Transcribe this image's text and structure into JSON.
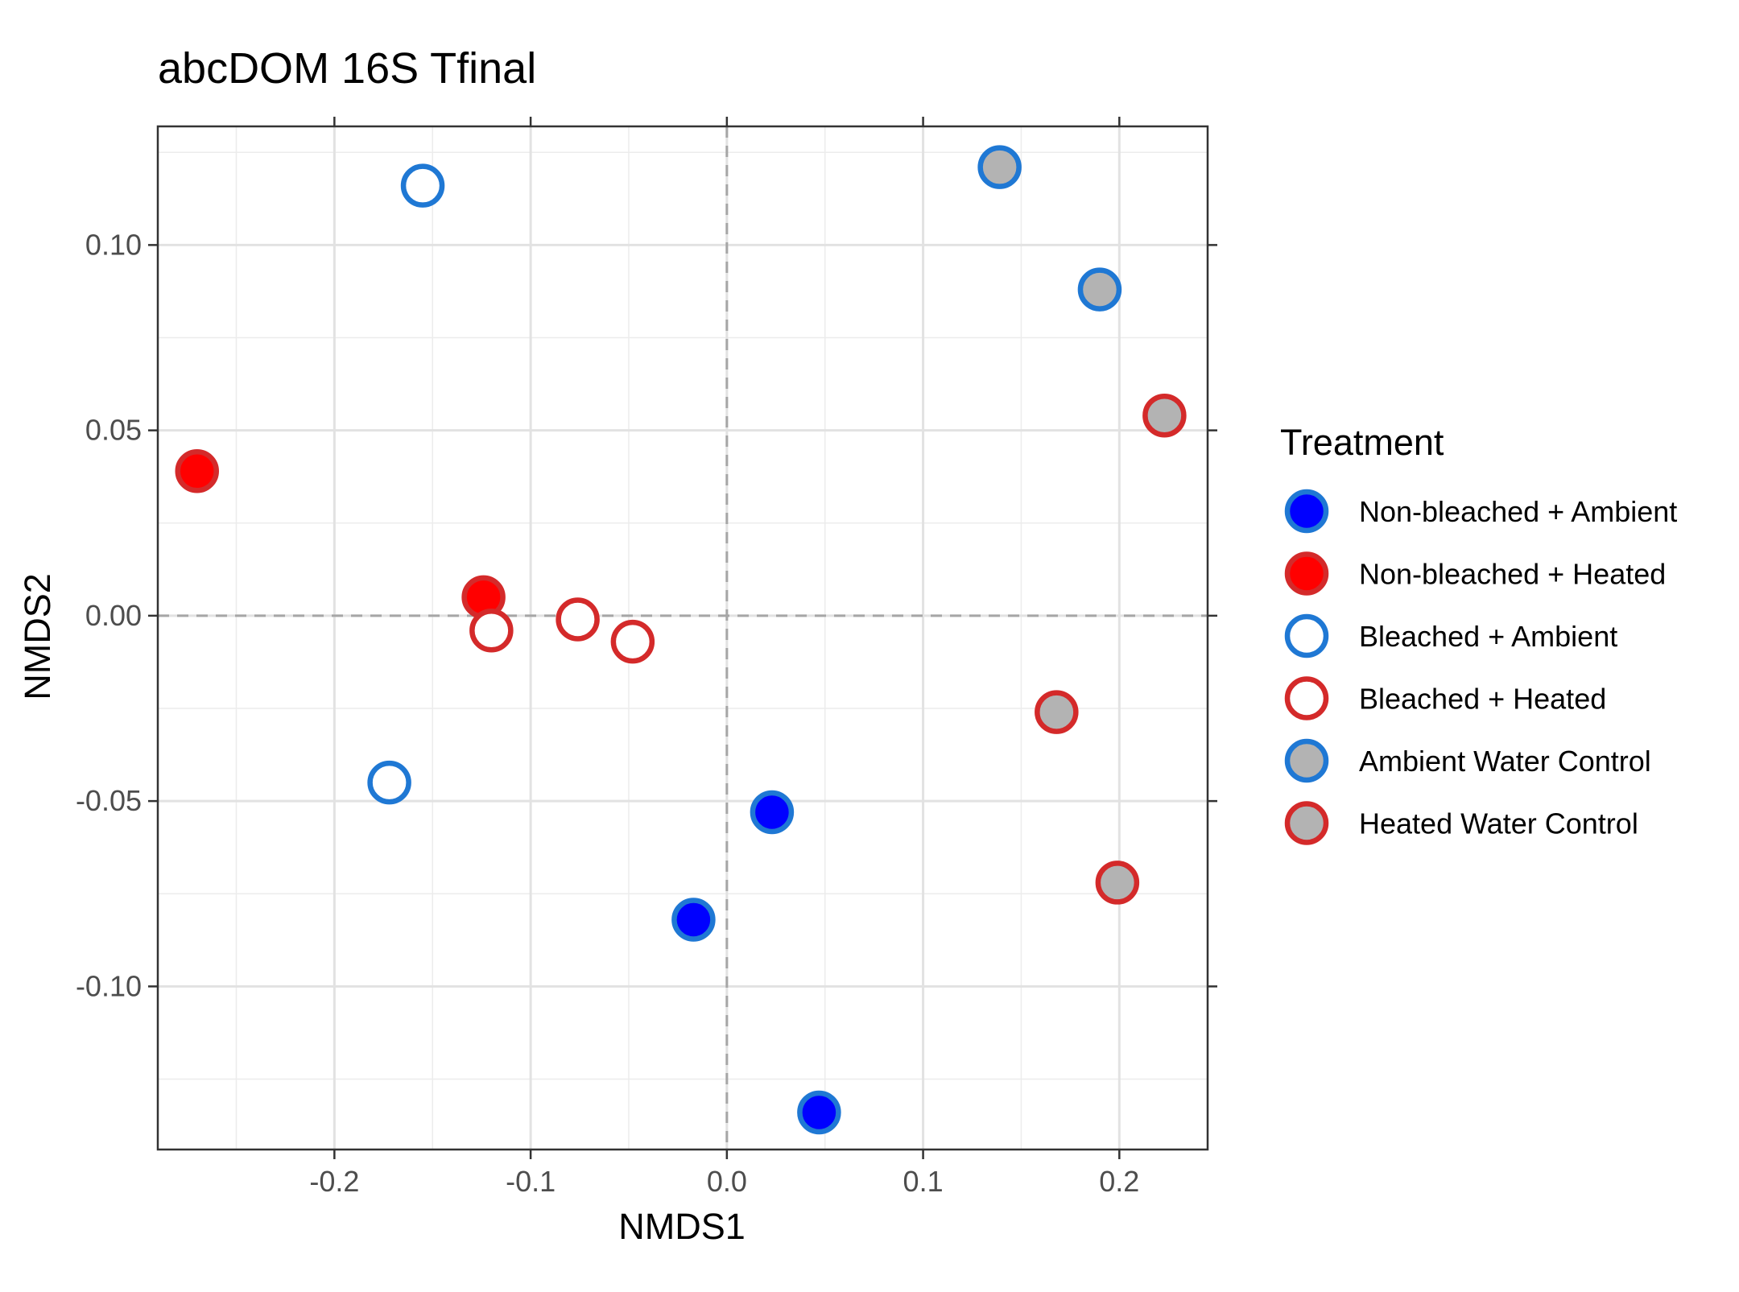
{
  "chart_data": {
    "type": "scatter",
    "title": "abcDOM 16S Tfinal",
    "xlabel": "NMDS1",
    "ylabel": "NMDS2",
    "xlim": [
      -0.29,
      0.245
    ],
    "ylim": [
      -0.144,
      0.132
    ],
    "xticks": [
      {
        "value": -0.2,
        "label": "-0.2"
      },
      {
        "value": -0.1,
        "label": "-0.1"
      },
      {
        "value": 0.0,
        "label": "0.0"
      },
      {
        "value": 0.1,
        "label": "0.1"
      },
      {
        "value": 0.2,
        "label": "0.2"
      }
    ],
    "yticks": [
      {
        "value": 0.1,
        "label": "0.10"
      },
      {
        "value": 0.05,
        "label": "0.05"
      },
      {
        "value": 0.0,
        "label": "0.00"
      },
      {
        "value": -0.05,
        "label": "-0.05"
      },
      {
        "value": -0.1,
        "label": "-0.10"
      }
    ],
    "grid": true,
    "reference_lines": {
      "x": 0,
      "y": 0,
      "style": "dashed"
    },
    "legend": {
      "title": "Treatment",
      "position": "right"
    },
    "series": [
      {
        "name": "Non-bleached + Ambient",
        "fill": "#0000ff",
        "stroke": "#1f78d4",
        "points": [
          {
            "x": 0.023,
            "y": -0.053
          },
          {
            "x": -0.017,
            "y": -0.082
          },
          {
            "x": 0.047,
            "y": -0.134
          }
        ]
      },
      {
        "name": "Non-bleached + Heated",
        "fill": "#ff0000",
        "stroke": "#d42a2a",
        "points": [
          {
            "x": -0.27,
            "y": 0.039
          },
          {
            "x": -0.124,
            "y": 0.005
          }
        ]
      },
      {
        "name": "Bleached + Ambient",
        "fill": "#ffffff",
        "stroke": "#1f78d4",
        "points": [
          {
            "x": -0.155,
            "y": 0.116
          },
          {
            "x": -0.172,
            "y": -0.045
          }
        ]
      },
      {
        "name": "Bleached + Heated",
        "fill": "#ffffff",
        "stroke": "#d42a2a",
        "points": [
          {
            "x": -0.12,
            "y": -0.004
          },
          {
            "x": -0.076,
            "y": -0.001
          },
          {
            "x": -0.048,
            "y": -0.007
          }
        ]
      },
      {
        "name": "Ambient Water Control",
        "fill": "#b3b3b3",
        "stroke": "#1f78d4",
        "points": [
          {
            "x": 0.139,
            "y": 0.121
          },
          {
            "x": 0.19,
            "y": 0.088
          }
        ]
      },
      {
        "name": "Heated Water Control",
        "fill": "#b3b3b3",
        "stroke": "#d42a2a",
        "points": [
          {
            "x": 0.223,
            "y": 0.054
          },
          {
            "x": 0.168,
            "y": -0.026
          },
          {
            "x": 0.199,
            "y": -0.072
          }
        ]
      }
    ]
  }
}
